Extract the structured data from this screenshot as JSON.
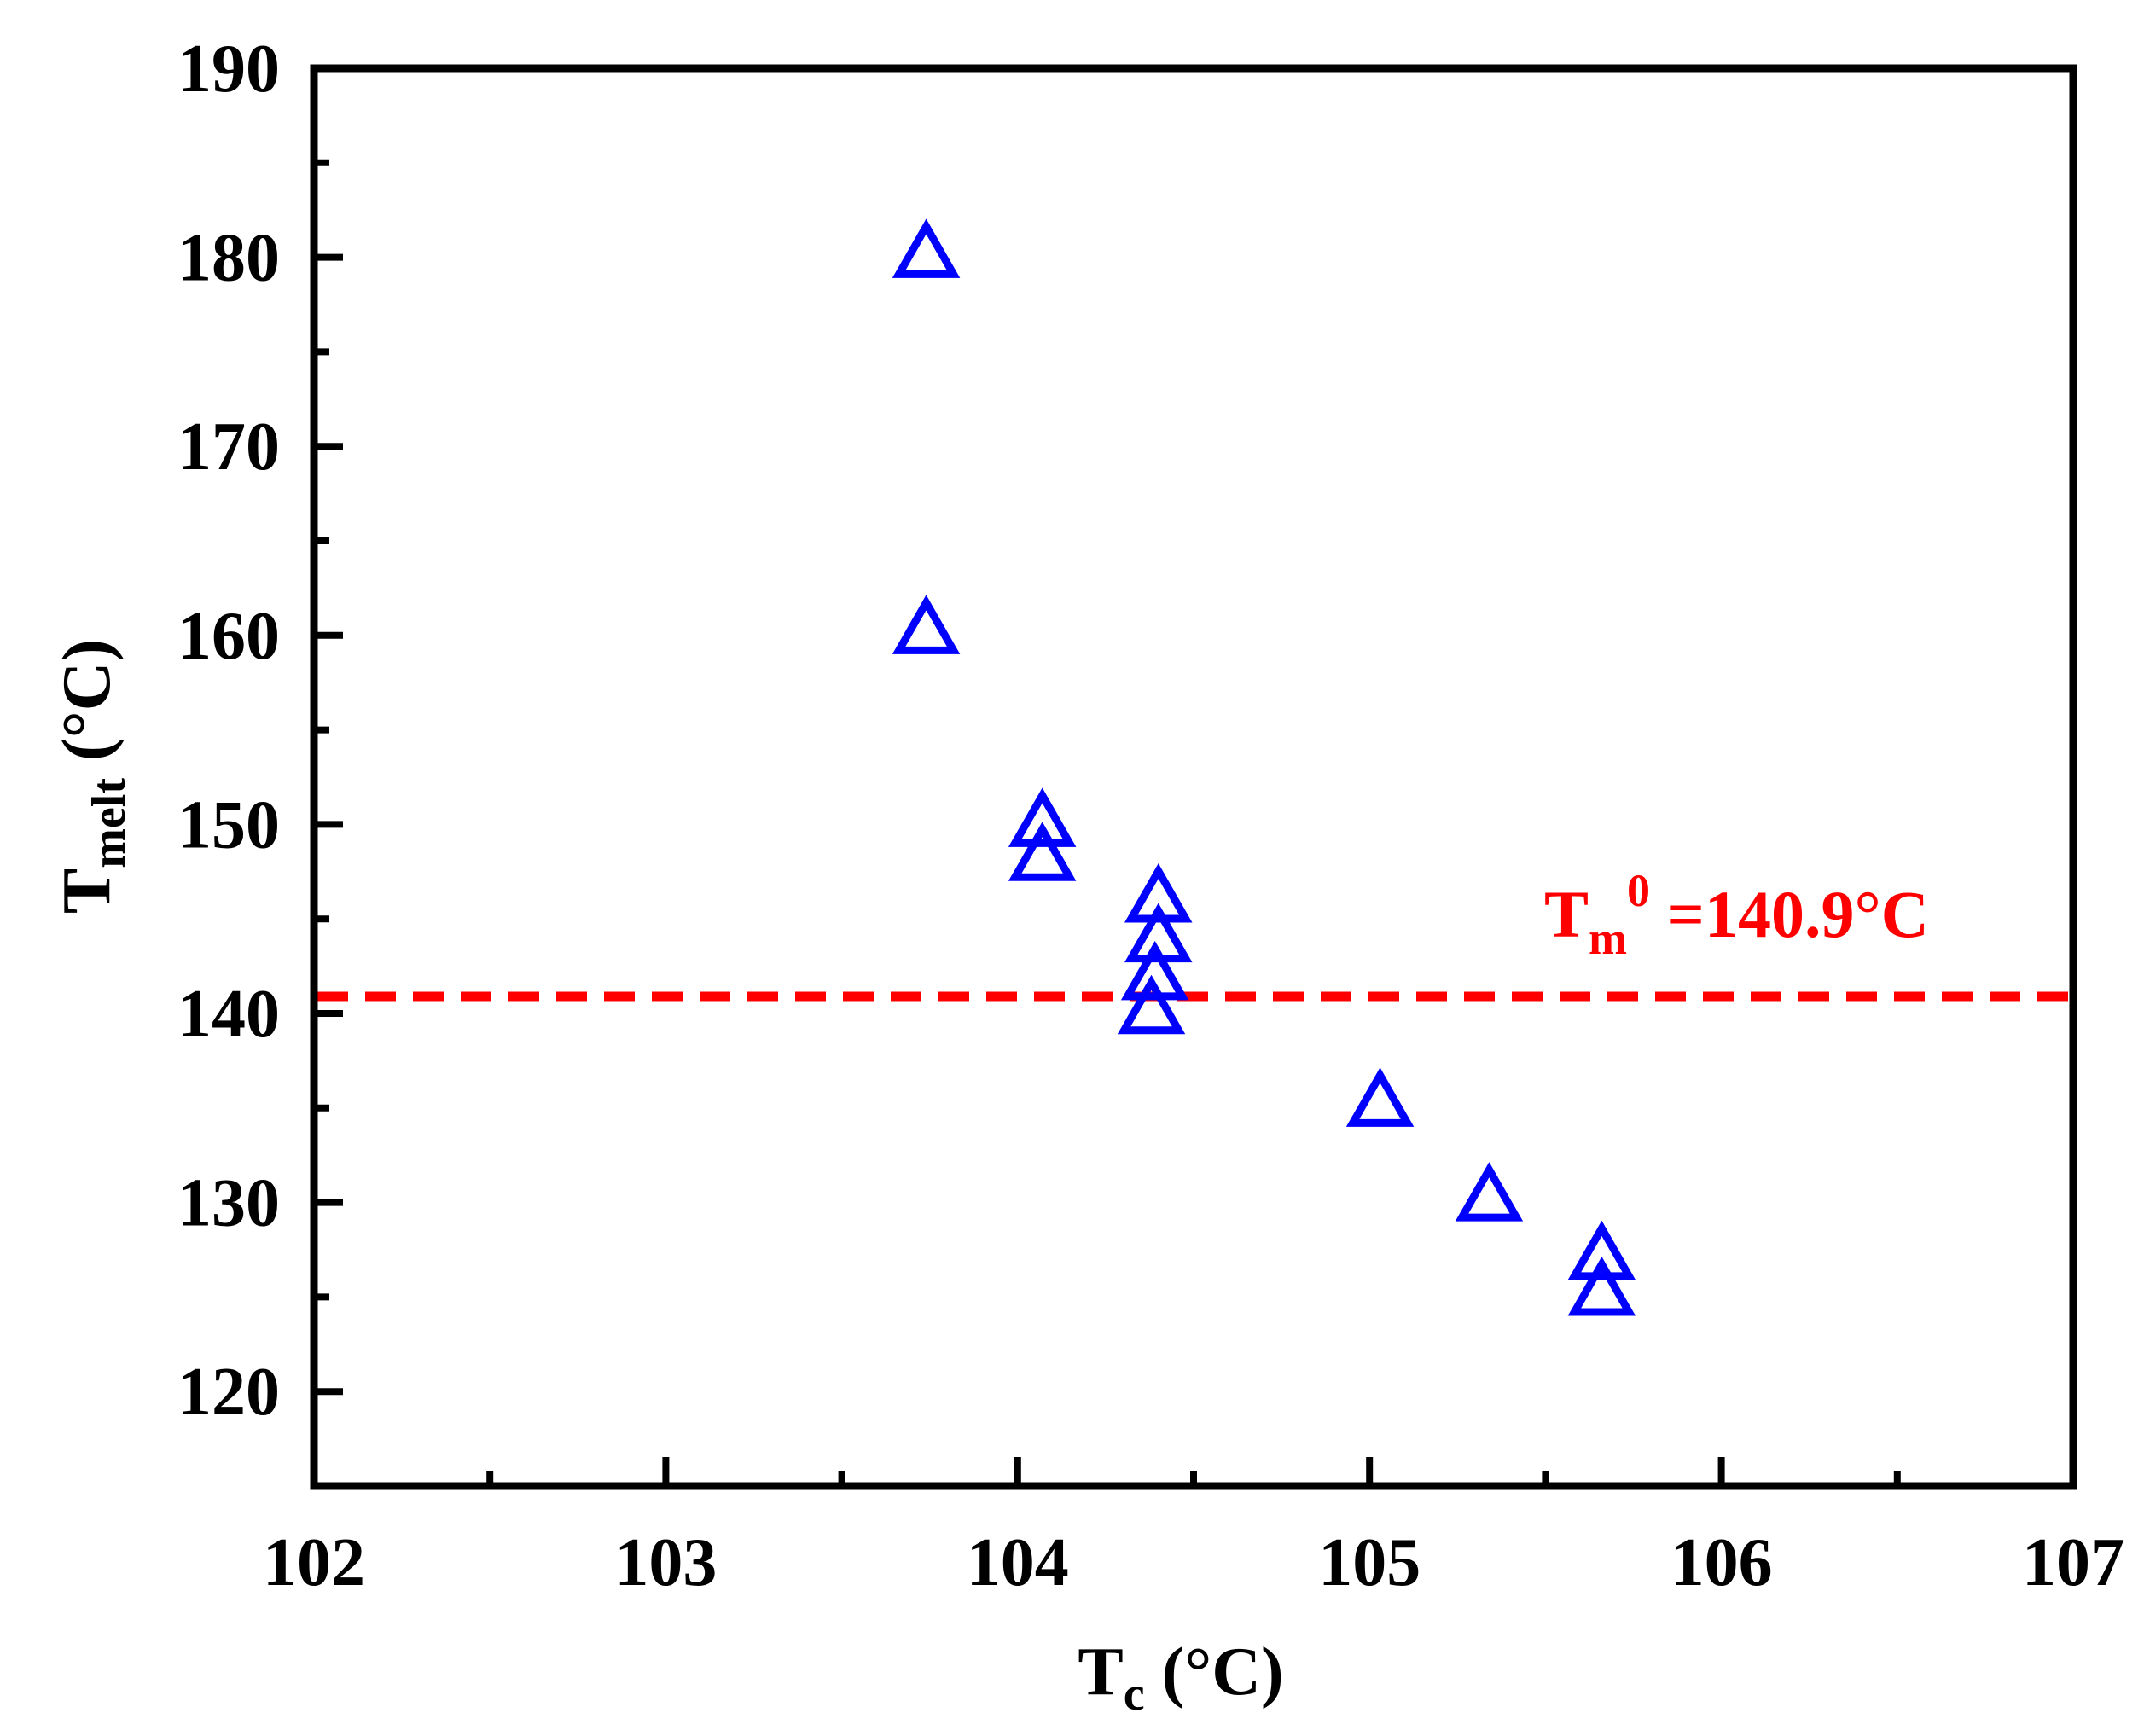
{
  "chart_data": {
    "type": "scatter",
    "xlim": [
      102,
      107
    ],
    "ylim": [
      115,
      190
    ],
    "x_ticks": [
      102,
      103,
      104,
      105,
      106,
      107
    ],
    "y_ticks": [
      120,
      130,
      140,
      150,
      160,
      170,
      180,
      190
    ],
    "x_minor_step": 0.5,
    "y_minor_step": 5,
    "xlabel": {
      "main": "T",
      "sub": "c",
      "unit": "(°C)"
    },
    "ylabel": {
      "main": "T",
      "sub": "melt",
      "unit": "(°C)"
    },
    "grid": false,
    "legend": "none",
    "series": [
      {
        "marker": "open-triangle",
        "color": "#0000ff",
        "points": [
          {
            "x": 103.74,
            "y": 180.1
          },
          {
            "x": 103.74,
            "y": 160.2
          },
          {
            "x": 104.07,
            "y": 150.0
          },
          {
            "x": 104.07,
            "y": 148.2
          },
          {
            "x": 104.4,
            "y": 146.0
          },
          {
            "x": 104.4,
            "y": 143.9
          },
          {
            "x": 104.39,
            "y": 141.9
          },
          {
            "x": 104.38,
            "y": 140.1
          },
          {
            "x": 105.03,
            "y": 135.2
          },
          {
            "x": 105.34,
            "y": 130.2
          },
          {
            "x": 105.66,
            "y": 127.1
          },
          {
            "x": 105.66,
            "y": 125.2
          }
        ]
      }
    ],
    "reference_line": {
      "orientation": "horizontal",
      "y": 140.9,
      "style": "dashed",
      "color": "#ff0000"
    },
    "annotation": {
      "main": "T",
      "sub": "m",
      "sup": "0",
      "value_text": "=140.9°C",
      "color": "#ff0000"
    }
  }
}
